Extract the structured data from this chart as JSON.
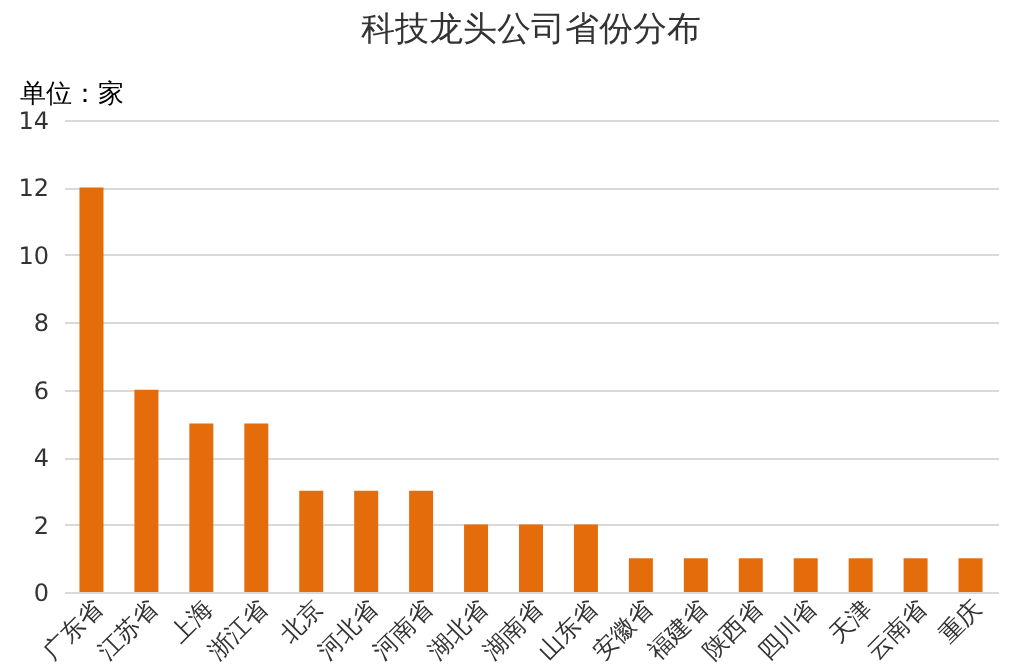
{
  "chart_data": {
    "type": "bar",
    "title": "科技龙头公司省份分布",
    "annotations": [
      "单位：家"
    ],
    "categories": [
      "广东省",
      "江苏省",
      "上海",
      "浙江省",
      "北京",
      "河北省",
      "河南省",
      "湖北省",
      "湖南省",
      "山东省",
      "安徽省",
      "福建省",
      "陕西省",
      "四川省",
      "天津",
      "云南省",
      "重庆"
    ],
    "values": [
      12,
      6,
      5,
      5,
      3,
      3,
      3,
      2,
      2,
      2,
      1,
      1,
      1,
      1,
      1,
      1,
      1
    ],
    "color": "#e46c0a",
    "ylim": [
      0,
      14
    ],
    "yticks": [
      0,
      2,
      4,
      6,
      8,
      10,
      12,
      14
    ],
    "grid": "y"
  }
}
